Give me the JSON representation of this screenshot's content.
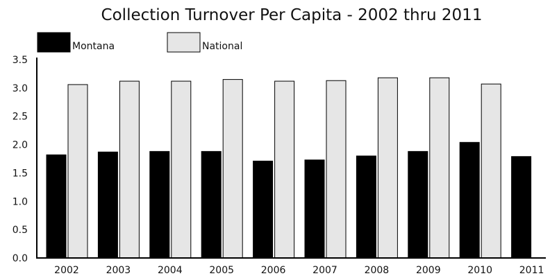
{
  "chart_data": {
    "type": "bar",
    "title": "Collection Turnover Per Capita - 2002 thru 2011",
    "categories": [
      "2002",
      "2003",
      "2004",
      "2005",
      "2006",
      "2007",
      "2008",
      "2009",
      "2010",
      "2011"
    ],
    "series": [
      {
        "name": "Montana",
        "color": "#000000",
        "values": [
          1.82,
          1.87,
          1.88,
          1.88,
          1.71,
          1.73,
          1.8,
          1.88,
          2.04,
          1.79
        ]
      },
      {
        "name": "National",
        "color": "#e6e6e6",
        "values": [
          3.06,
          3.12,
          3.12,
          3.15,
          3.12,
          3.13,
          3.18,
          3.18,
          3.07,
          null
        ]
      }
    ],
    "y_ticks": [
      "0.0",
      "0.5",
      "1.0",
      "1.5",
      "2.0",
      "2.5",
      "3.0",
      "3.5"
    ],
    "ylim": [
      0,
      3.5
    ],
    "xlabel": "",
    "ylabel": "",
    "grid": false,
    "legend_position": "top-left"
  }
}
